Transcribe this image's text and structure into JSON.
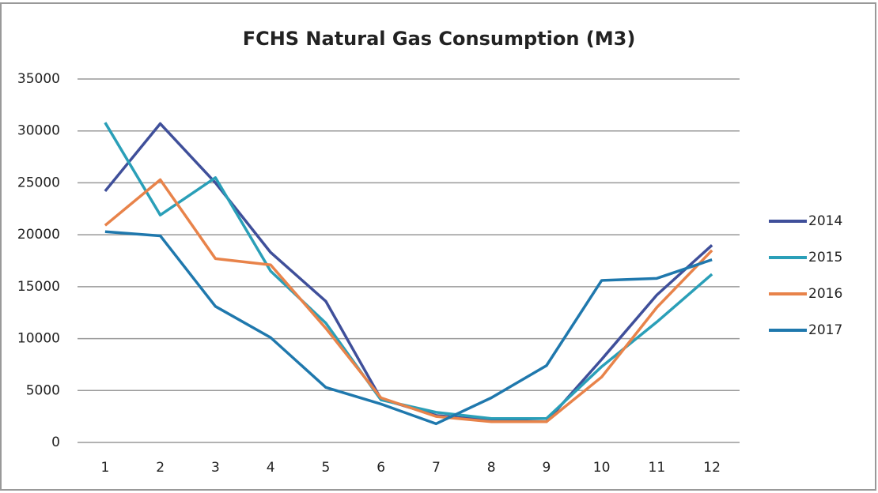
{
  "chart_data": {
    "type": "line",
    "title": "FCHS Natural Gas Consumption (M3)",
    "categories": [
      "1",
      "2",
      "3",
      "4",
      "5",
      "6",
      "7",
      "8",
      "9",
      "10",
      "11",
      "12"
    ],
    "series": [
      {
        "name": "2014",
        "color": "#3f4f9a",
        "values": [
          24200,
          30700,
          25000,
          18300,
          13600,
          4200,
          2600,
          2100,
          2000,
          8000,
          14200,
          19000
        ]
      },
      {
        "name": "2015",
        "color": "#2a9fb8",
        "values": [
          30800,
          21900,
          25500,
          16500,
          11500,
          4100,
          2900,
          2300,
          2300,
          7300,
          11600,
          16200
        ]
      },
      {
        "name": "2016",
        "color": "#e8834a",
        "values": [
          20900,
          25300,
          17700,
          17100,
          11000,
          4300,
          2500,
          2000,
          2000,
          6300,
          13000,
          18500
        ]
      },
      {
        "name": "2017",
        "color": "#1f78ad",
        "values": [
          20300,
          19900,
          13100,
          10100,
          5300,
          3700,
          1800,
          4300,
          7400,
          15600,
          15800,
          17600
        ]
      }
    ],
    "ylim": [
      0,
      35000
    ],
    "yticks": [
      0,
      5000,
      10000,
      15000,
      20000,
      25000,
      30000,
      35000
    ],
    "grid": true,
    "legend": "right"
  }
}
